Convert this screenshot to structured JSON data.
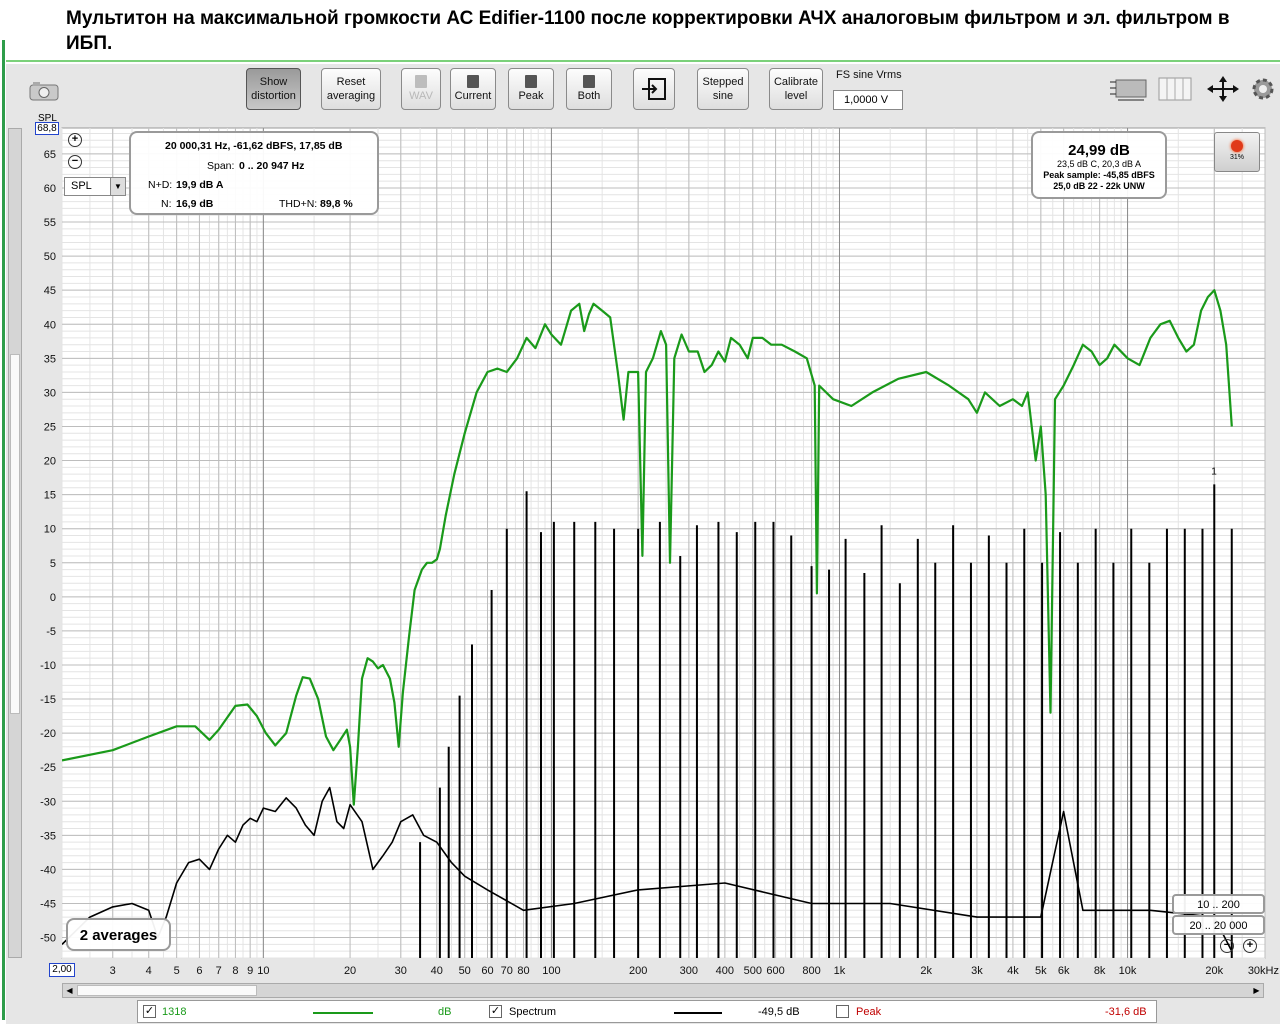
{
  "title": "Мультитон на максимальной громкости АС Edifier-1100 после корректировки АЧХ аналоговым фильтром и эл. фильтром в ИБП.",
  "toolbar": {
    "show_distortion": [
      "Show",
      "distortion"
    ],
    "reset_averaging": [
      "Reset",
      "averaging"
    ],
    "wav": "WAV",
    "current": "Current",
    "peak": "Peak",
    "both": "Both",
    "stepped_sine": [
      "Stepped",
      "sine"
    ],
    "calibrate_level": [
      "Calibrate",
      "level"
    ],
    "fs_label": "FS sine Vrms",
    "fs_value": "1,0000 V"
  },
  "info_box": {
    "cursor": "20 000,31 Hz, -61,62 dBFS, 17,85 dB",
    "span_label": "Span:",
    "span_value": "0 .. 20 947 Hz",
    "nd_label": "N+D:",
    "nd_value": "19,9 dB A",
    "n_label": "N:",
    "n_value": "16,9 dB",
    "thdn_label": "THD+N:",
    "thdn_value": "89,8 %"
  },
  "level_box": {
    "main": "24,99 dB",
    "line1": "23,5 dB C, 20,3 dB A",
    "line2": "Peak sample: -45,85 dBFS",
    "line3": "25,0 dB 22 - 22k UNW"
  },
  "record_button": {
    "percent": "31%"
  },
  "averages": "2 averages",
  "range_buttons": [
    "10 .. 200",
    "20 .. 20 000"
  ],
  "spl_selector": "SPL",
  "y_axis_label": "SPL",
  "y_max_field": "68,8",
  "x_min_field": "2,00",
  "marker_label": "1",
  "legend": {
    "trace1_name": "1318",
    "trace1_unit": "dB",
    "trace1_color": "#1a9a1a",
    "spectrum_label": "Spectrum",
    "spectrum_value": "-49,5 dB",
    "spectrum_color": "#000000",
    "peak_label": "Peak",
    "peak_value": "-31,6 dB",
    "peak_color": "#c00000"
  },
  "chart_data": {
    "type": "line",
    "x_scale": "log",
    "xlim": [
      2,
      30000
    ],
    "ylim": [
      -53,
      68.8
    ],
    "ylabel": "SPL",
    "y_ticks": [
      65,
      60,
      55,
      50,
      45,
      40,
      35,
      30,
      25,
      20,
      15,
      10,
      5,
      0,
      -5,
      -10,
      -15,
      -20,
      -25,
      -30,
      -35,
      -40,
      -45,
      -50
    ],
    "x_tick_labels": [
      [
        "3",
        3
      ],
      [
        "4",
        4
      ],
      [
        "5",
        5
      ],
      [
        "6",
        6
      ],
      [
        "7",
        7
      ],
      [
        "8",
        8
      ],
      [
        "9",
        9
      ],
      [
        "10",
        10
      ],
      [
        "20",
        20
      ],
      [
        "30",
        30
      ],
      [
        "40",
        40
      ],
      [
        "50",
        50
      ],
      [
        "60",
        60
      ],
      [
        "70",
        70
      ],
      [
        "80",
        80
      ],
      [
        "100",
        100
      ],
      [
        "200",
        200
      ],
      [
        "300",
        300
      ],
      [
        "400",
        400
      ],
      [
        "500",
        500
      ],
      [
        "600",
        600
      ],
      [
        "800",
        800
      ],
      [
        "1k",
        1000
      ],
      [
        "2k",
        2000
      ],
      [
        "3k",
        3000
      ],
      [
        "4k",
        4000
      ],
      [
        "5k",
        5000
      ],
      [
        "6k",
        6000
      ],
      [
        "8k",
        8000
      ],
      [
        "10k",
        10000
      ],
      [
        "20k",
        20000
      ],
      [
        "30kHz",
        30000
      ]
    ],
    "grid": true,
    "series": [
      {
        "name": "1318",
        "color": "#1a9a1a",
        "points": [
          [
            2,
            -24
          ],
          [
            3,
            -22.5
          ],
          [
            4,
            -20.5
          ],
          [
            5,
            -19
          ],
          [
            5.8,
            -19
          ],
          [
            6.5,
            -21
          ],
          [
            7,
            -19.5
          ],
          [
            8,
            -16
          ],
          [
            8.8,
            -15.8
          ],
          [
            9.5,
            -17.5
          ],
          [
            10.2,
            -20
          ],
          [
            11,
            -21.8
          ],
          [
            12,
            -20
          ],
          [
            13,
            -14.5
          ],
          [
            13.7,
            -11.8
          ],
          [
            14.5,
            -12
          ],
          [
            15.5,
            -15
          ],
          [
            16.5,
            -20.5
          ],
          [
            17.5,
            -22.5
          ],
          [
            18.5,
            -21
          ],
          [
            19.5,
            -19.5
          ],
          [
            20,
            -22
          ],
          [
            20.6,
            -30.5
          ],
          [
            21.3,
            -22
          ],
          [
            22,
            -12
          ],
          [
            23,
            -9
          ],
          [
            24,
            -9.5
          ],
          [
            25,
            -10.5
          ],
          [
            26,
            -10
          ],
          [
            27.5,
            -12
          ],
          [
            28.5,
            -15.5
          ],
          [
            29.5,
            -22
          ],
          [
            30.5,
            -14
          ],
          [
            32,
            -6
          ],
          [
            33.5,
            1
          ],
          [
            35.5,
            4
          ],
          [
            37,
            5
          ],
          [
            38.5,
            5
          ],
          [
            40,
            5.5
          ],
          [
            41,
            7
          ],
          [
            43,
            12
          ],
          [
            46,
            18
          ],
          [
            50,
            24
          ],
          [
            55,
            30
          ],
          [
            60,
            33
          ],
          [
            65,
            33.5
          ],
          [
            70,
            33
          ],
          [
            76,
            35
          ],
          [
            82,
            38
          ],
          [
            88,
            36.5
          ],
          [
            95,
            40
          ],
          [
            100,
            38.5
          ],
          [
            108,
            37
          ],
          [
            117,
            42
          ],
          [
            125,
            43
          ],
          [
            130,
            39
          ],
          [
            135,
            41.5
          ],
          [
            140,
            43
          ],
          [
            150,
            42
          ],
          [
            160,
            41
          ],
          [
            170,
            33
          ],
          [
            178,
            26
          ],
          [
            185,
            33
          ],
          [
            195,
            33
          ],
          [
            200,
            33
          ],
          [
            207,
            6
          ],
          [
            213,
            33
          ],
          [
            225,
            35
          ],
          [
            240,
            39
          ],
          [
            250,
            37
          ],
          [
            258,
            5
          ],
          [
            267,
            35
          ],
          [
            283,
            38.5
          ],
          [
            300,
            36
          ],
          [
            322,
            36
          ],
          [
            340,
            33
          ],
          [
            360,
            34
          ],
          [
            380,
            36
          ],
          [
            400,
            34.5
          ],
          [
            420,
            38
          ],
          [
            450,
            37
          ],
          [
            480,
            35
          ],
          [
            500,
            38
          ],
          [
            540,
            38
          ],
          [
            580,
            37
          ],
          [
            630,
            37
          ],
          [
            700,
            36
          ],
          [
            770,
            35
          ],
          [
            820,
            31
          ],
          [
            835,
            0.5
          ],
          [
            850,
            31
          ],
          [
            950,
            29
          ],
          [
            1100,
            28
          ],
          [
            1300,
            30
          ],
          [
            1600,
            32
          ],
          [
            2000,
            33
          ],
          [
            2400,
            31
          ],
          [
            2800,
            29
          ],
          [
            3000,
            27
          ],
          [
            3200,
            30
          ],
          [
            3600,
            28
          ],
          [
            4000,
            29
          ],
          [
            4300,
            28
          ],
          [
            4500,
            30
          ],
          [
            4800,
            20
          ],
          [
            5000,
            25
          ],
          [
            5200,
            15
          ],
          [
            5400,
            -17
          ],
          [
            5600,
            29
          ],
          [
            6000,
            31
          ],
          [
            6500,
            34
          ],
          [
            7000,
            37
          ],
          [
            7500,
            36
          ],
          [
            8000,
            34
          ],
          [
            8500,
            35
          ],
          [
            9000,
            37
          ],
          [
            10000,
            35
          ],
          [
            11000,
            34
          ],
          [
            12000,
            38
          ],
          [
            13000,
            40
          ],
          [
            14000,
            40.5
          ],
          [
            15000,
            38
          ],
          [
            16000,
            36
          ],
          [
            17000,
            37
          ],
          [
            18000,
            42
          ],
          [
            19000,
            44
          ],
          [
            20000,
            45
          ],
          [
            21000,
            42
          ],
          [
            22000,
            37
          ],
          [
            23000,
            25
          ]
        ]
      },
      {
        "name": "Spectrum",
        "color": "#000000",
        "points": [
          [
            2,
            -51
          ],
          [
            2.5,
            -47
          ],
          [
            3,
            -45.5
          ],
          [
            3.5,
            -45
          ],
          [
            4,
            -46
          ],
          [
            4.3,
            -50
          ],
          [
            4.6,
            -47
          ],
          [
            5,
            -42
          ],
          [
            5.5,
            -39
          ],
          [
            6,
            -38.5
          ],
          [
            6.5,
            -40
          ],
          [
            7,
            -37
          ],
          [
            7.5,
            -35
          ],
          [
            8,
            -36
          ],
          [
            8.5,
            -33.5
          ],
          [
            9,
            -32.5
          ],
          [
            9.5,
            -33
          ],
          [
            10,
            -31
          ],
          [
            11,
            -31.5
          ],
          [
            12,
            -29.5
          ],
          [
            13,
            -31
          ],
          [
            14,
            -33.5
          ],
          [
            15,
            -35
          ],
          [
            16,
            -30
          ],
          [
            17,
            -28
          ],
          [
            18,
            -33
          ],
          [
            19,
            -34
          ],
          [
            20,
            -30.5
          ],
          [
            22,
            -33
          ],
          [
            24,
            -40
          ],
          [
            26,
            -38
          ],
          [
            28,
            -36
          ],
          [
            30,
            -33
          ],
          [
            33,
            -32
          ],
          [
            36,
            -35
          ],
          [
            40,
            -36
          ],
          [
            45,
            -39
          ],
          [
            50,
            -41
          ],
          [
            60,
            -43
          ],
          [
            80,
            -46
          ],
          [
            120,
            -45
          ],
          [
            200,
            -43
          ],
          [
            400,
            -42
          ],
          [
            800,
            -45
          ],
          [
            1500,
            -45
          ],
          [
            3000,
            -47
          ],
          [
            5000,
            -47
          ],
          [
            6000,
            -31.5
          ],
          [
            7000,
            -46
          ],
          [
            12000,
            -46
          ],
          [
            20000,
            -47
          ],
          [
            23000,
            -52
          ]
        ]
      }
    ],
    "spikes": {
      "name": "Spectrum",
      "color": "#000000",
      "baseline": -53,
      "marked_index": 1,
      "points": [
        [
          35,
          -36
        ],
        [
          41,
          -28
        ],
        [
          44,
          -22
        ],
        [
          48,
          -14.5
        ],
        [
          53,
          -7
        ],
        [
          62,
          1
        ],
        [
          70,
          10
        ],
        [
          82,
          15.5
        ],
        [
          92,
          9.5
        ],
        [
          102,
          11
        ],
        [
          120,
          11
        ],
        [
          142,
          11
        ],
        [
          165,
          10
        ],
        [
          200,
          10
        ],
        [
          238,
          11
        ],
        [
          280,
          6
        ],
        [
          320,
          10.5
        ],
        [
          380,
          11
        ],
        [
          440,
          9.5
        ],
        [
          510,
          11
        ],
        [
          590,
          11
        ],
        [
          680,
          9
        ],
        [
          800,
          4.5
        ],
        [
          920,
          4
        ],
        [
          1050,
          8.5
        ],
        [
          1220,
          3.5
        ],
        [
          1400,
          10.5
        ],
        [
          1620,
          2
        ],
        [
          1870,
          8.5
        ],
        [
          2150,
          5
        ],
        [
          2480,
          10.5
        ],
        [
          2860,
          5
        ],
        [
          3300,
          9
        ],
        [
          3800,
          5
        ],
        [
          4380,
          10
        ],
        [
          5050,
          5
        ],
        [
          5830,
          9.5
        ],
        [
          6720,
          5
        ],
        [
          7750,
          10
        ],
        [
          8930,
          5
        ],
        [
          10300,
          10
        ],
        [
          11900,
          5
        ],
        [
          13700,
          10
        ],
        [
          15800,
          10
        ],
        [
          18200,
          10
        ],
        [
          20000,
          16.5
        ],
        [
          23000,
          10
        ]
      ]
    }
  }
}
